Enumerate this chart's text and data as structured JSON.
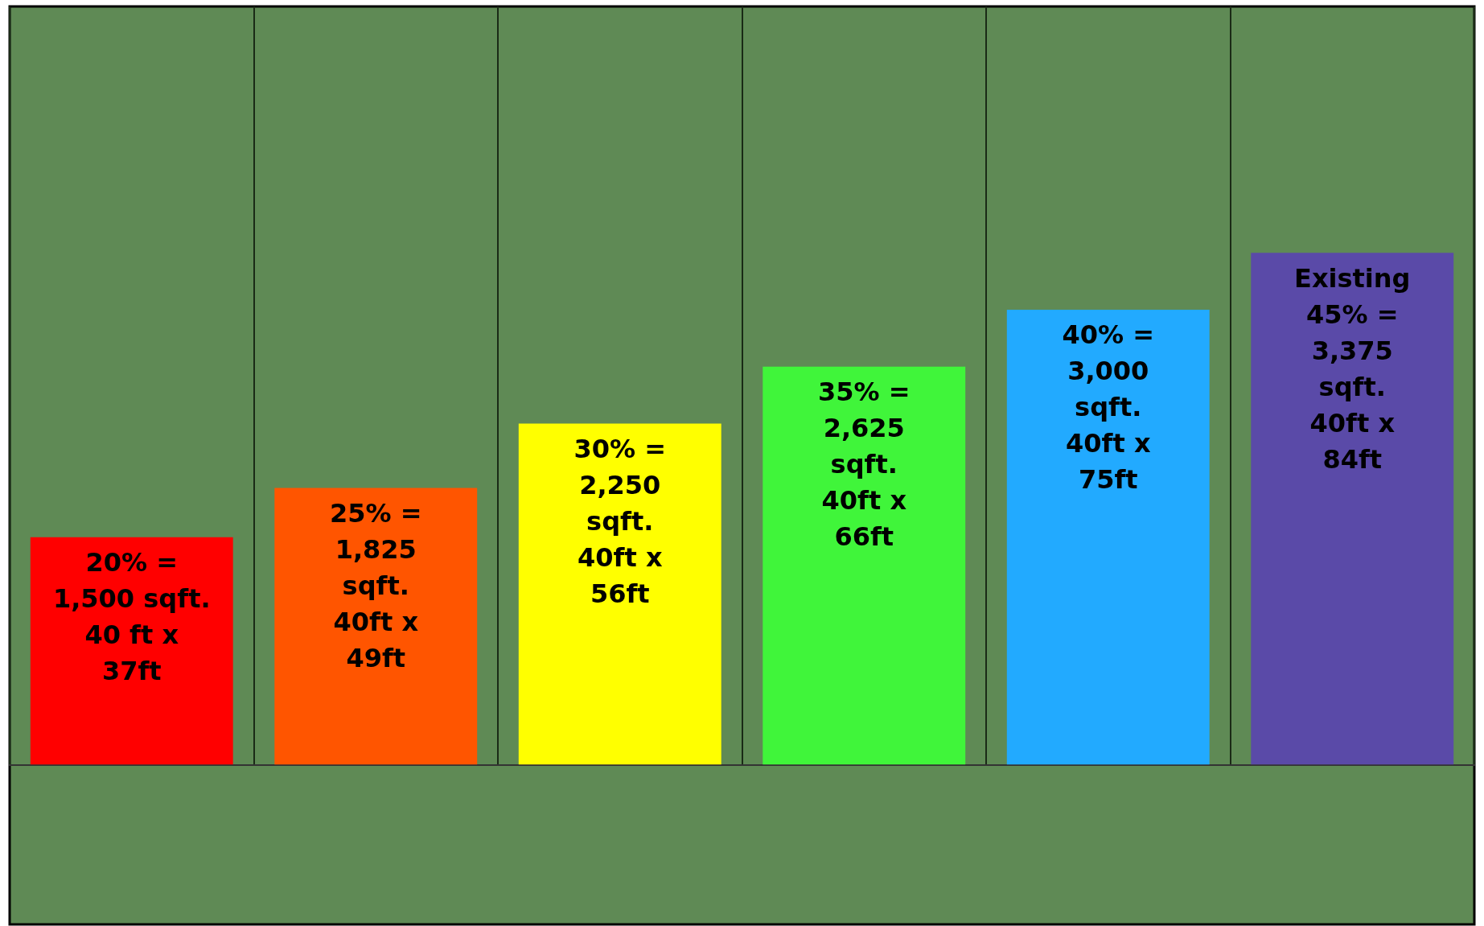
{
  "chart_data": {
    "type": "bar",
    "categories": [
      null,
      null,
      null,
      null,
      null,
      null
    ],
    "values": [
      1500,
      1825,
      2250,
      2625,
      3000,
      3375
    ],
    "colors": [
      "#ff0000",
      "#ff5500",
      "#ffff00",
      "#40f53a",
      "#22aaff",
      "#5a4aa8"
    ],
    "value_labels": [
      "20% =\n1,500 sqft.\n40 ft x\n37ft",
      "25% =\n1,825\nsqft.\n40ft x\n49ft",
      "30% =\n2,250\nsqft.\n40ft x\n56ft",
      "35% =\n2,625\nsqft.\n40ft x\n66ft",
      "40% =\n3,000\nsqft.\n40ft x\n75ft",
      "Existing\n45% =\n3,375\nsqft.\n40ft x\n84ft"
    ],
    "grid": "x",
    "legend": false
  }
}
